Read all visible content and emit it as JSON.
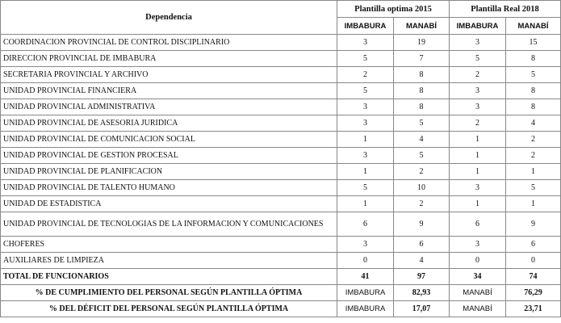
{
  "table": {
    "header": {
      "dependencia": "Dependencia",
      "groups": [
        "Plantilla optima 2015",
        "Plantilla Real 2018"
      ],
      "subheaders": [
        "IMBABURA",
        "MANABÍ",
        "IMBABURA",
        "MANABÍ"
      ]
    },
    "rows": [
      [
        "COORDINACION PROVINCIAL DE CONTROL DISCIPLINARIO",
        3,
        19,
        3,
        15
      ],
      [
        "DIRECCION PROVINCIAL DE IMBABURA",
        5,
        7,
        5,
        8
      ],
      [
        "SECRETARIA PROVINCIAL Y ARCHIVO",
        2,
        8,
        2,
        5
      ],
      [
        "UNIDAD PROVINCIAL FINANCIERA",
        5,
        8,
        3,
        8
      ],
      [
        "UNIDAD PROVINCIAL ADMINISTRATIVA",
        3,
        8,
        3,
        8
      ],
      [
        "UNIDAD PROVINCIAL DE ASESORIA JURIDICA",
        3,
        5,
        2,
        4
      ],
      [
        "UNIDAD PROVINCIAL DE COMUNICACION SOCIAL",
        1,
        4,
        1,
        2
      ],
      [
        "UNIDAD PROVINCIAL DE GESTION PROCESAL",
        3,
        5,
        1,
        2
      ],
      [
        "UNIDAD PROVINCIAL DE PLANIFICACION",
        1,
        2,
        1,
        1
      ],
      [
        "UNIDAD PROVINCIAL DE TALENTO HUMANO",
        5,
        10,
        3,
        5
      ],
      [
        "UNIDAD DE ESTADISTICA",
        1,
        2,
        1,
        1
      ],
      [
        "UNIDAD PROVINCIAL DE TECNOLOGIAS DE LA INFORMACION Y COMUNICACIONES",
        6,
        9,
        6,
        9
      ],
      [
        "CHOFERES",
        3,
        6,
        3,
        6
      ],
      [
        "AUXILIARES DE LIMPIEZA",
        0,
        4,
        0,
        0
      ]
    ],
    "total": [
      "TOTAL DE FUNCIONARIOS",
      41,
      97,
      34,
      74
    ],
    "summary": [
      [
        "% DE CUMPLIMIENTO DEL PERSONAL SEGÚN PLANTILLA ÓPTIMA",
        "IMBABURA",
        "82,93",
        "MANABÍ",
        "76,29"
      ],
      [
        "% DEL DÉFICIT DEL PERSONAL SEGÚN PLANTILLA ÓPTIMA",
        "IMBABURA",
        "17,07",
        "MANABÍ",
        "23,71"
      ]
    ]
  }
}
